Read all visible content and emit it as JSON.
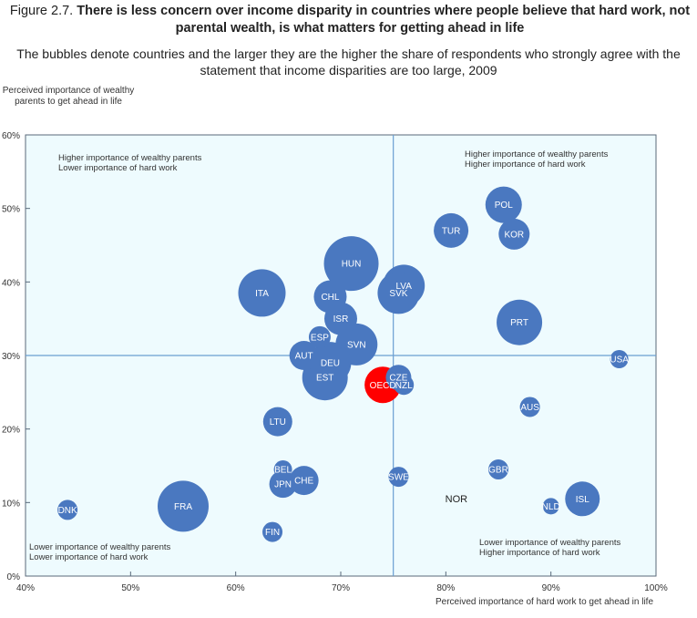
{
  "figure": {
    "number": "Figure 2.7.",
    "title": "There is less concern over income disparity in countries where people believe that hard work, not parental wealth, is what matters for getting ahead in life",
    "subtitle": "The bubbles denote countries and the larger they are the higher the share of respondents who strongly agree with the statement that income disparities are too large, 2009"
  },
  "chart_data": {
    "type": "scatter",
    "subtype": "bubble",
    "xlabel": "Perceived importance of hard work to get ahead in life",
    "ylabel": "Perceived importance of wealthy parents to get ahead in life",
    "xlim": [
      40,
      100
    ],
    "ylim": [
      0,
      60
    ],
    "x_ticks": [
      "40%",
      "50%",
      "60%",
      "70%",
      "80%",
      "90%",
      "100%"
    ],
    "y_ticks": [
      "0%",
      "10%",
      "20%",
      "30%",
      "40%",
      "50%",
      "60%"
    ],
    "reference_lines": {
      "x": 75,
      "y": 30
    },
    "quadrant_labels": {
      "top_left": [
        "Higher importance of wealthy parents",
        "Lower importance of hard work"
      ],
      "top_right": [
        "Higher importance of wealthy parents",
        "Higher importance of hard work"
      ],
      "bottom_left": [
        "Lower importance of wealthy parents",
        "Lower importance of hard work"
      ],
      "bottom_right": [
        "Lower importance of wealthy parents",
        "Higher importance of hard work"
      ]
    },
    "size_meaning": "Share of respondents who strongly agree that income disparities are too large (relative)",
    "colors": {
      "bubble": "#4a78c0",
      "highlight": "#ff0000",
      "plot_bg": "#eefbfe",
      "ref_line": "#6a9fd2",
      "label": "#ffffff"
    },
    "points": [
      {
        "label": "POL",
        "x": 85.5,
        "y": 50.5,
        "size": 20
      },
      {
        "label": "KOR",
        "x": 86.5,
        "y": 46.5,
        "size": 17
      },
      {
        "label": "TUR",
        "x": 80.5,
        "y": 47.0,
        "size": 19
      },
      {
        "label": "HUN",
        "x": 71.0,
        "y": 42.5,
        "size": 30
      },
      {
        "label": "LVA",
        "x": 76.0,
        "y": 39.5,
        "size": 23
      },
      {
        "label": "SVK",
        "x": 75.5,
        "y": 38.5,
        "size": 23
      },
      {
        "label": "ITA",
        "x": 62.5,
        "y": 38.5,
        "size": 26
      },
      {
        "label": "CHL",
        "x": 69.0,
        "y": 38.0,
        "size": 18
      },
      {
        "label": "PRT",
        "x": 87.0,
        "y": 34.5,
        "size": 25
      },
      {
        "label": "ISR",
        "x": 70.0,
        "y": 35.0,
        "size": 18
      },
      {
        "label": "ESP",
        "x": 68.0,
        "y": 32.5,
        "size": 12
      },
      {
        "label": "SVN",
        "x": 71.5,
        "y": 31.5,
        "size": 23
      },
      {
        "label": "AUT",
        "x": 66.5,
        "y": 30.0,
        "size": 16
      },
      {
        "label": "USA",
        "x": 96.5,
        "y": 29.5,
        "size": 10
      },
      {
        "label": "DEU",
        "x": 69.0,
        "y": 29.0,
        "size": 23
      },
      {
        "label": "CZE",
        "x": 75.5,
        "y": 27.0,
        "size": 14
      },
      {
        "label": "EST",
        "x": 68.5,
        "y": 27.0,
        "size": 25
      },
      {
        "label": "NZL",
        "x": 76.0,
        "y": 26.0,
        "size": 11
      },
      {
        "label": "OECD",
        "x": 74.0,
        "y": 26.0,
        "size": 20,
        "highlight": true
      },
      {
        "label": "AUS",
        "x": 88.0,
        "y": 23.0,
        "size": 11
      },
      {
        "label": "LTU",
        "x": 64.0,
        "y": 21.0,
        "size": 16
      },
      {
        "label": "GBR",
        "x": 85.0,
        "y": 14.5,
        "size": 11
      },
      {
        "label": "BEL",
        "x": 64.5,
        "y": 14.5,
        "size": 10
      },
      {
        "label": "SWE",
        "x": 75.5,
        "y": 13.5,
        "size": 11
      },
      {
        "label": "CHE",
        "x": 66.5,
        "y": 13.0,
        "size": 16
      },
      {
        "label": "JPN",
        "x": 64.5,
        "y": 12.5,
        "size": 15
      },
      {
        "label": "NOR",
        "x": 81.0,
        "y": 10.5,
        "size": 0
      },
      {
        "label": "ISL",
        "x": 93.0,
        "y": 10.5,
        "size": 19
      },
      {
        "label": "NLD",
        "x": 90.0,
        "y": 9.5,
        "size": 9
      },
      {
        "label": "DNK",
        "x": 44.0,
        "y": 9.0,
        "size": 11
      },
      {
        "label": "FRA",
        "x": 55.0,
        "y": 9.5,
        "size": 28
      },
      {
        "label": "FIN",
        "x": 63.5,
        "y": 6.0,
        "size": 11
      }
    ]
  }
}
